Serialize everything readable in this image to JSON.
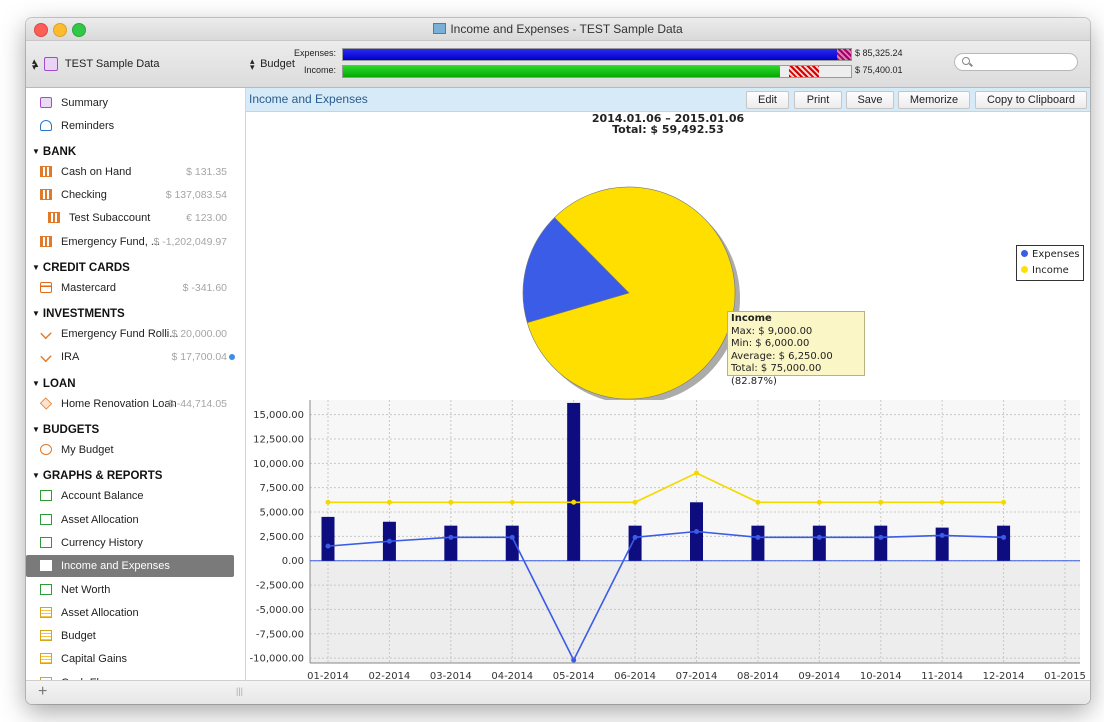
{
  "window": {
    "title": "Income and Expenses - TEST Sample Data"
  },
  "toolbar": {
    "file_selector_label": "TEST Sample Data",
    "budget_selector_label": "Budget",
    "expenses_label": "Expenses:",
    "income_label": "Income:",
    "expenses_amount": "$ 85,325.24",
    "income_amount": "$ 75,400.01",
    "expenses_fraction": 0.98,
    "income_fraction": 0.86,
    "search_placeholder": ""
  },
  "sidebar": {
    "top_items": [
      {
        "label": "Summary",
        "icon": "summary-icon"
      },
      {
        "label": "Reminders",
        "icon": "bell-icon"
      }
    ],
    "sections": [
      {
        "title": "BANK",
        "items": [
          {
            "label": "Cash on Hand",
            "value": "$ 131.35",
            "icon": "bank-icon"
          },
          {
            "label": "Checking",
            "value": "$ 137,083.54",
            "icon": "bank-icon"
          },
          {
            "label": "Test Subaccount",
            "value": "€ 123.00",
            "icon": "bank-icon"
          },
          {
            "label": "Emergency Fund, ...",
            "value": "$ -1,202,049.97",
            "icon": "bank-icon"
          }
        ]
      },
      {
        "title": "CREDIT CARDS",
        "items": [
          {
            "label": "Mastercard",
            "value": "$ -341.60",
            "icon": "credit-card-icon"
          }
        ]
      },
      {
        "title": "INVESTMENTS",
        "items": [
          {
            "label": "Emergency Fund Rolli...",
            "value": "$ 20,000.00",
            "icon": "investment-icon"
          },
          {
            "label": "IRA",
            "value": "$ 17,700.04",
            "icon": "investment-icon"
          }
        ]
      },
      {
        "title": "LOAN",
        "items": [
          {
            "label": "Home Renovation Loan",
            "value": "$ -44,714.05",
            "icon": "loan-icon"
          }
        ]
      },
      {
        "title": "BUDGETS",
        "items": [
          {
            "label": "My Budget",
            "value": "",
            "icon": "budget-icon"
          }
        ]
      },
      {
        "title": "GRAPHS & REPORTS",
        "items": [
          {
            "label": "Account Balance",
            "value": "",
            "icon": "graph-icon"
          },
          {
            "label": "Asset Allocation",
            "value": "",
            "icon": "graph-icon"
          },
          {
            "label": "Currency History",
            "value": "",
            "icon": "graph-icon"
          },
          {
            "label": "Income and Expenses",
            "value": "",
            "icon": "graph-icon",
            "selected": true
          },
          {
            "label": "Net Worth",
            "value": "",
            "icon": "graph-icon"
          },
          {
            "label": "Asset Allocation",
            "value": "",
            "icon": "report-icon"
          },
          {
            "label": "Budget",
            "value": "",
            "icon": "report-icon"
          },
          {
            "label": "Capital Gains",
            "value": "",
            "icon": "report-icon"
          },
          {
            "label": "Cash Flow",
            "value": "",
            "icon": "report-icon"
          }
        ]
      }
    ]
  },
  "content": {
    "title": "Income and Expenses",
    "buttons": {
      "edit": "Edit",
      "print": "Print",
      "save": "Save",
      "memorize": "Memorize",
      "copy": "Copy to Clipboard"
    },
    "date_range": "2014.01.06 – 2015.01.06",
    "total": "Total: $ 59,492.53"
  },
  "colors": {
    "expenses": "#3a5ce6",
    "income": "#ffdf00",
    "bar": "#0d0d80",
    "line": "#3a5ce6",
    "income_line": "#f5d800",
    "selection": "#7a7a7a",
    "header_bg": "#d6eaf8"
  },
  "chart_data": [
    {
      "type": "pie",
      "slices": [
        {
          "name": "Expenses",
          "value": 17.13
        },
        {
          "name": "Income",
          "value": 82.87
        }
      ],
      "legend": [
        "Expenses",
        "Income"
      ],
      "legend_position": "right",
      "tooltip": {
        "title": "Income",
        "lines": [
          "Max: $ 9,000.00",
          "Min: $ 6,000.00",
          "Average: $ 6,250.00",
          "Total: $ 75,000.00 (82.87%)"
        ]
      }
    },
    {
      "type": "bar",
      "categories": [
        "01-2014",
        "02-2014",
        "03-2014",
        "04-2014",
        "05-2014",
        "06-2014",
        "07-2014",
        "08-2014",
        "09-2014",
        "10-2014",
        "11-2014",
        "12-2014",
        "01-2015"
      ],
      "y_ticks": [
        "15,000.00",
        "12,500.00",
        "10,000.00",
        "7,500.00",
        "5,000.00",
        "2,500.00",
        "0.00",
        "-2,500.00",
        "-5,000.00",
        "-7,500.00",
        "-10,000.00"
      ],
      "ylim": [
        -10500,
        16500
      ],
      "grid": true,
      "series": [
        {
          "kind": "bar",
          "values": [
            4500,
            4000,
            3600,
            3600,
            16200,
            3600,
            6000,
            3600,
            3600,
            3600,
            3400,
            3600,
            null
          ]
        },
        {
          "kind": "line",
          "values": [
            1500,
            2000,
            2400,
            2400,
            -10200,
            2400,
            3000,
            2400,
            2400,
            2400,
            2600,
            2400,
            null
          ]
        },
        {
          "kind": "line",
          "values": [
            6000,
            6000,
            6000,
            6000,
            6000,
            6000,
            9000,
            6000,
            6000,
            6000,
            6000,
            6000,
            null
          ]
        }
      ]
    }
  ]
}
